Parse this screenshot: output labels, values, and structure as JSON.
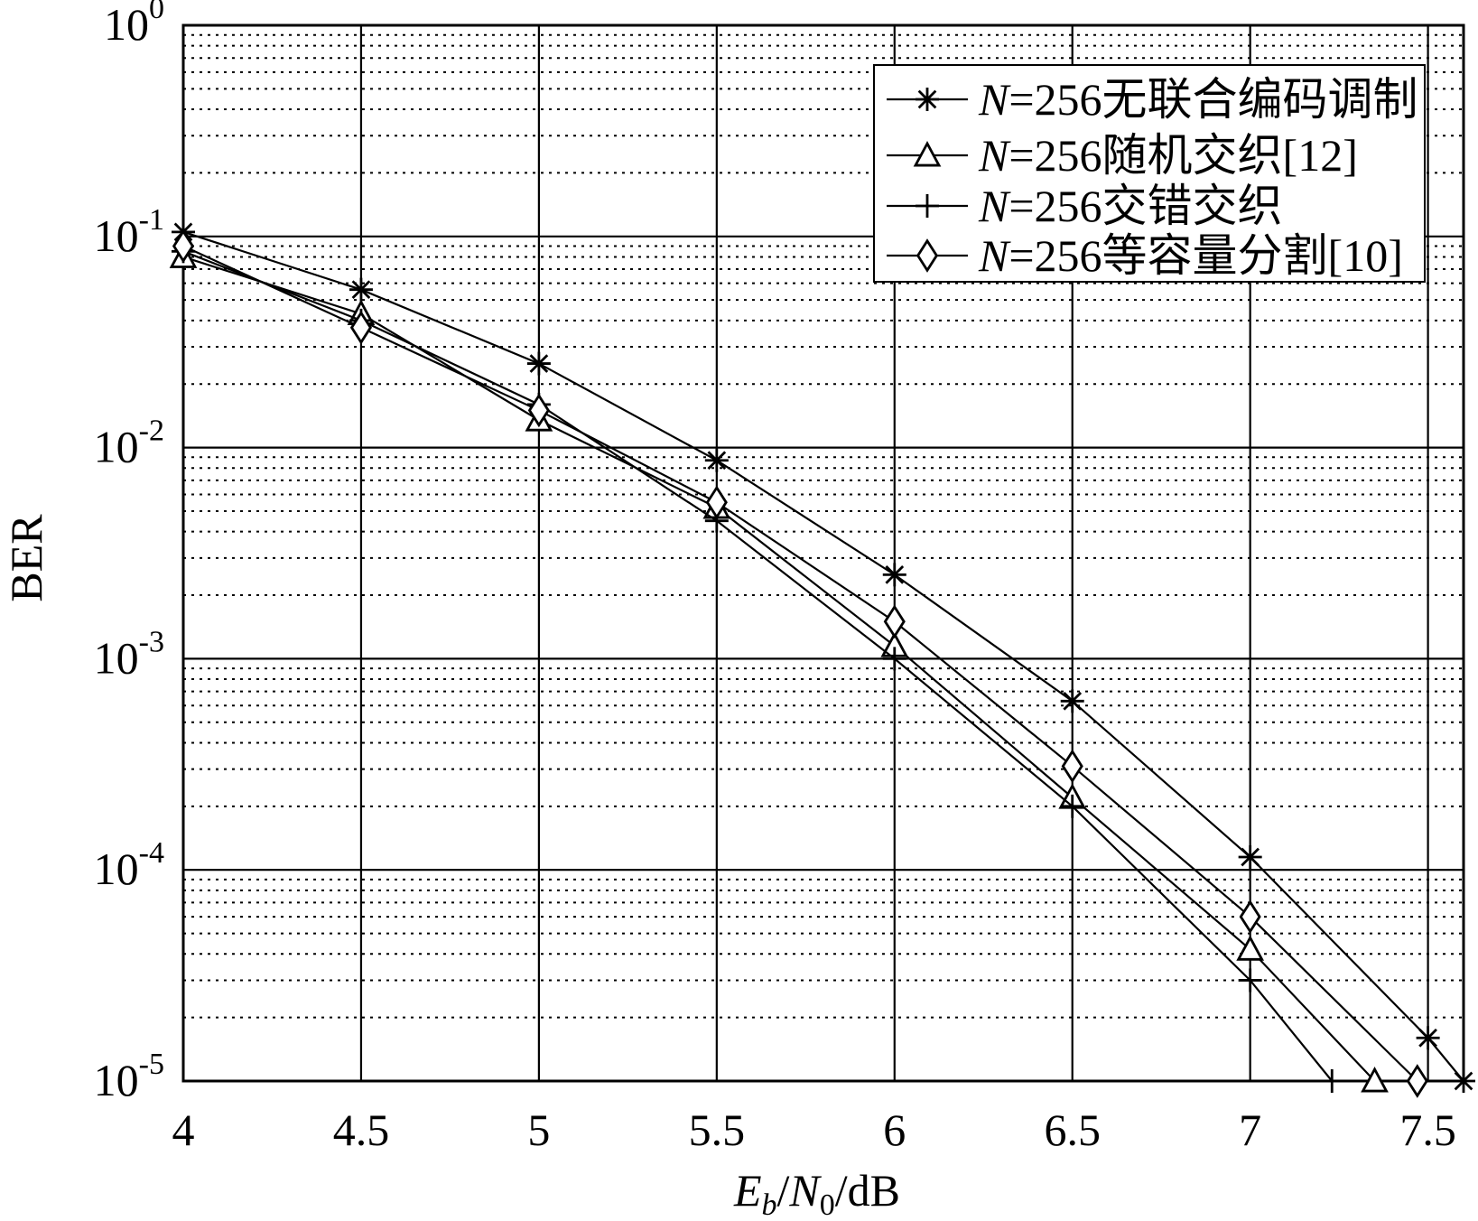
{
  "chart_data": {
    "type": "line",
    "xlabel": {
      "e": "E",
      "sub1": "b",
      "slash1": "/",
      "n": "N",
      "sub2": "0",
      "unit": "/dB"
    },
    "ylabel": "BER",
    "xlim": [
      4,
      7.6
    ],
    "ylim": [
      1e-05,
      1
    ],
    "yscale": "log",
    "grid": true,
    "legend_position": "top-right",
    "x_ticks": [
      4,
      4.5,
      5,
      5.5,
      6,
      6.5,
      7,
      7.5
    ],
    "x_tick_labels": [
      "4",
      "4.5",
      "5",
      "5.5",
      "6",
      "6.5",
      "7",
      "7.5"
    ],
    "y_ticks": [
      {
        "value": 1,
        "base": "10",
        "exp": "0"
      },
      {
        "value": 0.1,
        "base": "10",
        "exp": "-1"
      },
      {
        "value": 0.01,
        "base": "10",
        "exp": "-2"
      },
      {
        "value": 0.001,
        "base": "10",
        "exp": "-3"
      },
      {
        "value": 0.0001,
        "base": "10",
        "exp": "-4"
      },
      {
        "value": 1e-05,
        "base": "10",
        "exp": "-5"
      }
    ],
    "series": [
      {
        "name_italic": "N",
        "name": "=256无联合编码调制",
        "marker": "asterisk",
        "x": [
          4,
          4.5,
          5,
          5.5,
          6,
          6.5,
          7,
          7.5,
          7.6
        ],
        "y": [
          0.105,
          0.056,
          0.025,
          0.0087,
          0.0025,
          0.00063,
          0.000115,
          1.6e-05,
          1e-05
        ]
      },
      {
        "name_italic": "N",
        "name": "=256随机交织[12]",
        "marker": "triangle",
        "x": [
          4,
          4.5,
          5,
          5.5,
          6,
          6.5,
          7,
          7.35
        ],
        "y": [
          0.08,
          0.043,
          0.0135,
          0.0052,
          0.00115,
          0.00022,
          4.2e-05,
          1e-05
        ]
      },
      {
        "name_italic": "N",
        "name": "=256交错交织",
        "marker": "plus",
        "x": [
          4,
          4.5,
          5,
          5.5,
          6,
          6.5,
          7,
          7.23
        ],
        "y": [
          0.085,
          0.04,
          0.016,
          0.0045,
          0.001,
          0.0002,
          3e-05,
          1e-05
        ]
      },
      {
        "name_italic": "N",
        "name": "=256等容量分割[10]",
        "marker": "diamond",
        "x": [
          4,
          4.5,
          5,
          5.5,
          6,
          6.5,
          7,
          7.47
        ],
        "y": [
          0.09,
          0.037,
          0.015,
          0.0055,
          0.0015,
          0.00031,
          6e-05,
          1e-05
        ]
      }
    ]
  }
}
